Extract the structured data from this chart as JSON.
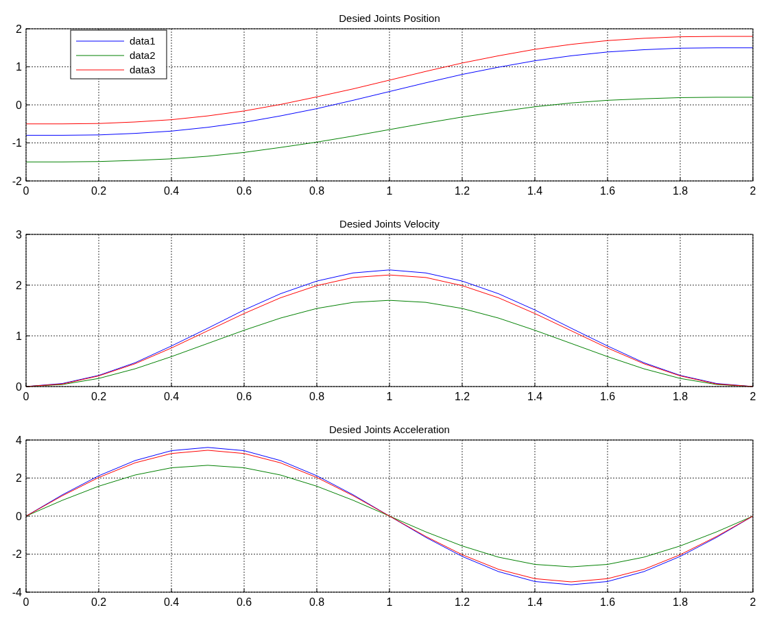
{
  "chart_data": [
    {
      "type": "line",
      "title": "Desied Joints Position",
      "x": [
        0,
        0.1,
        0.2,
        0.3,
        0.4,
        0.5,
        0.6,
        0.7,
        0.8,
        0.9,
        1,
        1.1,
        1.2,
        1.3,
        1.4,
        1.5,
        1.6,
        1.7,
        1.8,
        1.9,
        2
      ],
      "xlim": [
        0,
        2
      ],
      "xticks": [
        0,
        0.2,
        0.4,
        0.6,
        0.8,
        1,
        1.2,
        1.4,
        1.6,
        1.8,
        2
      ],
      "ylim": [
        -2,
        2
      ],
      "yticks": [
        -2,
        -1,
        0,
        1,
        2
      ],
      "grid": true,
      "legend": "top left",
      "series": [
        {
          "name": "data1",
          "color": "#0000ff",
          "values": [
            -0.8,
            -0.8,
            -0.79,
            -0.75,
            -0.69,
            -0.59,
            -0.46,
            -0.29,
            -0.1,
            0.12,
            0.35,
            0.58,
            0.8,
            0.99,
            1.16,
            1.29,
            1.39,
            1.45,
            1.49,
            1.5,
            1.5
          ]
        },
        {
          "name": "data2",
          "color": "#008000",
          "values": [
            -1.5,
            -1.5,
            -1.49,
            -1.46,
            -1.42,
            -1.35,
            -1.25,
            -1.12,
            -0.98,
            -0.82,
            -0.65,
            -0.48,
            -0.32,
            -0.18,
            -0.05,
            0.05,
            0.12,
            0.16,
            0.19,
            0.2,
            0.2
          ]
        },
        {
          "name": "data3",
          "color": "#ff0000",
          "values": [
            -0.5,
            -0.5,
            -0.49,
            -0.45,
            -0.39,
            -0.29,
            -0.16,
            0.01,
            0.21,
            0.42,
            0.65,
            0.88,
            1.1,
            1.29,
            1.46,
            1.59,
            1.69,
            1.75,
            1.79,
            1.8,
            1.8
          ]
        }
      ]
    },
    {
      "type": "line",
      "title": "Desied Joints Velocity",
      "x": [
        0,
        0.1,
        0.2,
        0.3,
        0.4,
        0.5,
        0.6,
        0.7,
        0.8,
        0.9,
        1,
        1.1,
        1.2,
        1.3,
        1.4,
        1.5,
        1.6,
        1.7,
        1.8,
        1.9,
        2
      ],
      "xlim": [
        0,
        2
      ],
      "xticks": [
        0,
        0.2,
        0.4,
        0.6,
        0.8,
        1,
        1.2,
        1.4,
        1.6,
        1.8,
        2
      ],
      "ylim": [
        0,
        3
      ],
      "yticks": [
        0,
        1,
        2,
        3
      ],
      "grid": true,
      "series": [
        {
          "color": "#0000ff",
          "values": [
            0,
            0.06,
            0.22,
            0.47,
            0.8,
            1.15,
            1.51,
            1.83,
            2.08,
            2.24,
            2.3,
            2.24,
            2.08,
            1.83,
            1.51,
            1.15,
            0.8,
            0.47,
            0.22,
            0.06,
            0
          ]
        },
        {
          "color": "#008000",
          "values": [
            0,
            0.04,
            0.16,
            0.35,
            0.59,
            0.85,
            1.11,
            1.35,
            1.54,
            1.66,
            1.7,
            1.66,
            1.54,
            1.35,
            1.11,
            0.85,
            0.59,
            0.35,
            0.16,
            0.04,
            0
          ]
        },
        {
          "color": "#ff0000",
          "values": [
            0,
            0.05,
            0.21,
            0.45,
            0.76,
            1.1,
            1.44,
            1.75,
            1.99,
            2.15,
            2.2,
            2.15,
            1.99,
            1.75,
            1.44,
            1.1,
            0.76,
            0.45,
            0.21,
            0.05,
            0
          ]
        }
      ]
    },
    {
      "type": "line",
      "title": "Desied Joints Acceleration",
      "x": [
        0,
        0.1,
        0.2,
        0.3,
        0.4,
        0.5,
        0.6,
        0.7,
        0.8,
        0.9,
        1,
        1.1,
        1.2,
        1.3,
        1.4,
        1.5,
        1.6,
        1.7,
        1.8,
        1.9,
        2
      ],
      "xlim": [
        0,
        2
      ],
      "xticks": [
        0,
        0.2,
        0.4,
        0.6,
        0.8,
        1,
        1.2,
        1.4,
        1.6,
        1.8,
        2
      ],
      "ylim": [
        -4,
        4
      ],
      "yticks": [
        -4,
        -2,
        0,
        2,
        4
      ],
      "grid": true,
      "series": [
        {
          "color": "#0000ff",
          "values": [
            0,
            1.12,
            2.12,
            2.92,
            3.44,
            3.61,
            3.44,
            2.92,
            2.12,
            1.12,
            0,
            -1.12,
            -2.12,
            -2.92,
            -3.44,
            -3.61,
            -3.44,
            -2.92,
            -2.12,
            -1.12,
            0
          ]
        },
        {
          "color": "#008000",
          "values": [
            0,
            0.83,
            1.57,
            2.16,
            2.54,
            2.67,
            2.54,
            2.16,
            1.57,
            0.83,
            0,
            -0.83,
            -1.57,
            -2.16,
            -2.54,
            -2.67,
            -2.54,
            -2.16,
            -1.57,
            -0.83,
            0
          ]
        },
        {
          "color": "#ff0000",
          "values": [
            0,
            1.07,
            2.03,
            2.8,
            3.29,
            3.46,
            3.29,
            2.8,
            2.03,
            1.07,
            0,
            -1.07,
            -2.03,
            -2.8,
            -3.29,
            -3.46,
            -3.29,
            -2.8,
            -2.03,
            -1.07,
            0
          ]
        }
      ]
    }
  ]
}
